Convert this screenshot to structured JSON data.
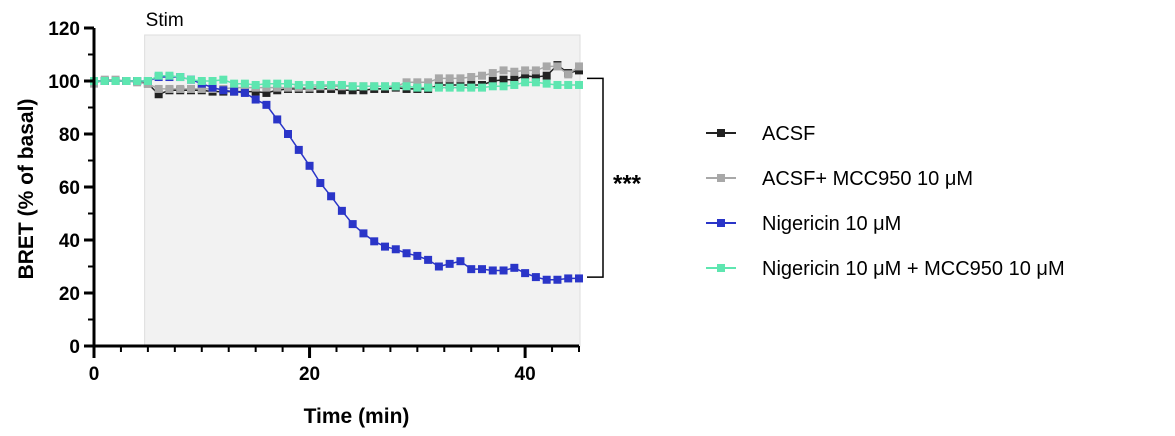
{
  "chart_data": {
    "type": "line",
    "title": "",
    "xlabel": "Time (min)",
    "ylabel": "BRET (% of basal)",
    "xlim": [
      0,
      45
    ],
    "ylim": [
      0,
      120
    ],
    "xticks": [
      "0",
      "20",
      "40"
    ],
    "yticks": [
      "0",
      "20",
      "40",
      "60",
      "80",
      "100",
      "120"
    ],
    "shaded_region": {
      "label": "Stim",
      "x": [
        4.7,
        45
      ],
      "color": "#f2f2f2"
    },
    "significance": {
      "label": "***",
      "y": [
        101,
        26
      ]
    },
    "legend_position": "right",
    "grid": false,
    "series": [
      {
        "name": "ACSF",
        "color": "#222222",
        "x": [
          0,
          1,
          2,
          3,
          4,
          5,
          6,
          7,
          8,
          9,
          10,
          11,
          12,
          13,
          14,
          15,
          16,
          17,
          18,
          19,
          20,
          21,
          22,
          23,
          24,
          25,
          26,
          27,
          28,
          29,
          30,
          31,
          32,
          33,
          34,
          35,
          36,
          37,
          38,
          39,
          40,
          41,
          42,
          43,
          44,
          45
        ],
        "y": [
          100,
          100,
          100,
          100,
          100,
          99,
          95,
          96.5,
          96.5,
          96.5,
          96.5,
          96,
          96,
          96,
          96,
          96,
          95.5,
          96.5,
          97,
          97,
          97,
          97,
          97,
          96.5,
          96.5,
          96.5,
          97,
          97,
          97.5,
          97,
          97,
          97,
          98.5,
          98.5,
          98.5,
          98.5,
          98.5,
          100,
          100.5,
          100.5,
          102,
          101.5,
          102,
          106,
          103,
          104
        ]
      },
      {
        "name": "ACSF+ MCC950 10 μM",
        "color": "#a8a8a8",
        "x": [
          0,
          1,
          2,
          3,
          4,
          5,
          6,
          7,
          8,
          9,
          10,
          11,
          12,
          13,
          14,
          15,
          16,
          17,
          18,
          19,
          20,
          21,
          22,
          23,
          24,
          25,
          26,
          27,
          28,
          29,
          30,
          31,
          32,
          33,
          34,
          35,
          36,
          37,
          38,
          39,
          40,
          41,
          42,
          43,
          44,
          45
        ],
        "y": [
          99,
          100.5,
          100.5,
          100,
          99.5,
          99,
          97,
          97,
          97,
          97,
          97,
          97,
          97,
          97.5,
          97.5,
          97.5,
          97.5,
          97.5,
          97.5,
          97.5,
          97.5,
          98,
          98,
          98,
          98,
          98,
          98,
          98,
          98,
          99.5,
          99.5,
          99.5,
          101,
          101,
          101,
          101.5,
          102,
          103,
          104,
          103.5,
          104,
          104,
          105.5,
          105.5,
          102.5,
          105.5
        ]
      },
      {
        "name": "Nigericin 10 μM",
        "color": "#2a35c8",
        "x": [
          0,
          1,
          2,
          3,
          4,
          5,
          6,
          7,
          8,
          9,
          10,
          11,
          12,
          13,
          14,
          15,
          16,
          17,
          18,
          19,
          20,
          21,
          22,
          23,
          24,
          25,
          26,
          27,
          28,
          29,
          30,
          31,
          32,
          33,
          34,
          35,
          36,
          37,
          38,
          39,
          40,
          41,
          42,
          43,
          44,
          45
        ],
        "y": [
          100,
          100,
          100,
          100,
          100,
          100,
          101.5,
          101.5,
          101.5,
          100.5,
          99,
          97.5,
          96.5,
          96,
          95.5,
          93,
          91,
          85.5,
          80,
          74,
          68,
          61.5,
          56.5,
          51,
          46,
          42.5,
          39.5,
          37.5,
          36.5,
          35,
          34,
          32.5,
          30,
          31,
          32,
          29,
          29,
          28.5,
          28.5,
          29.5,
          27.5,
          26,
          25,
          25,
          25.5,
          25.5
        ]
      },
      {
        "name": "Nigericin 10 μM + MCC950 10 μM",
        "color": "#5ee6b0",
        "x": [
          0,
          1,
          2,
          3,
          4,
          5,
          6,
          7,
          8,
          9,
          10,
          11,
          12,
          13,
          14,
          15,
          16,
          17,
          18,
          19,
          20,
          21,
          22,
          23,
          24,
          25,
          26,
          27,
          28,
          29,
          30,
          31,
          32,
          33,
          34,
          35,
          36,
          37,
          38,
          39,
          40,
          41,
          42,
          43,
          44,
          45
        ],
        "y": [
          100,
          100,
          100,
          100,
          100,
          100,
          102,
          102,
          101.5,
          100.5,
          100,
          100,
          100.5,
          99,
          99,
          98.5,
          99,
          99,
          99,
          98.5,
          98.5,
          98.5,
          98.5,
          98.5,
          98,
          98,
          98,
          98,
          98,
          98,
          97.5,
          97.5,
          97.5,
          97.5,
          97.5,
          97.5,
          97.5,
          98,
          98,
          98.5,
          99.5,
          99.5,
          99,
          98.5,
          98.5,
          98.5
        ]
      }
    ]
  }
}
